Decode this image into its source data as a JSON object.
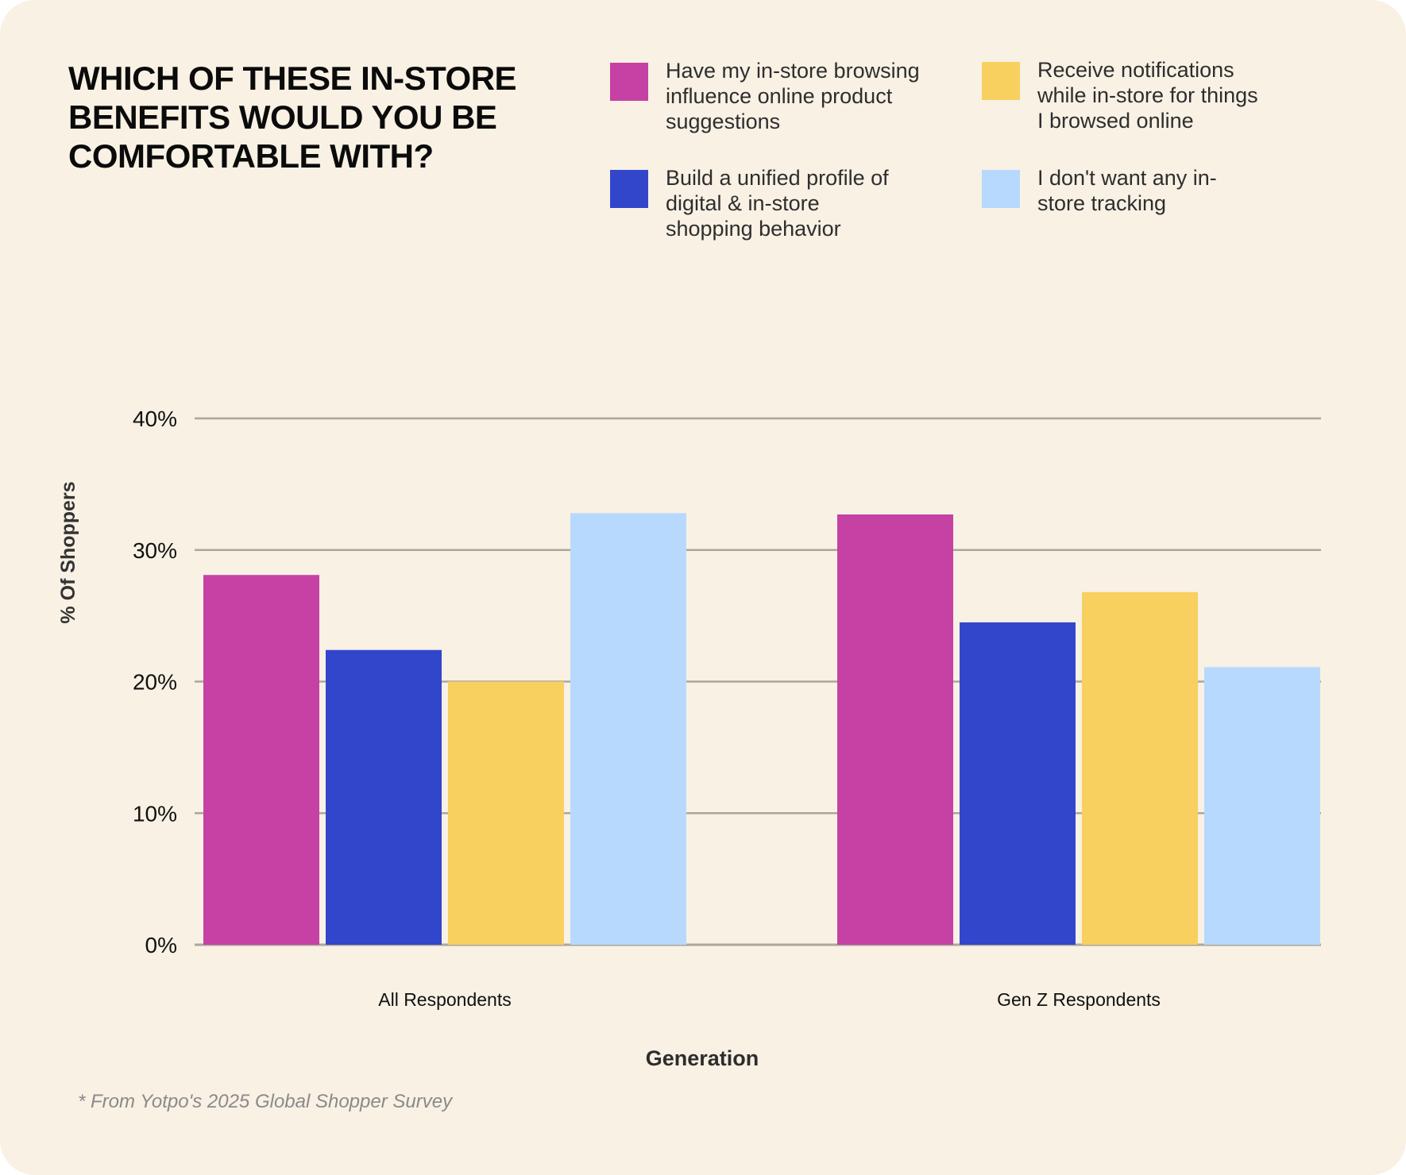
{
  "title_lines": [
    "WHICH OF THESE IN-STORE",
    "BENEFITS WOULD YOU BE",
    "COMFORTABLE WITH?"
  ],
  "legend": [
    {
      "lines": [
        "Have my in-store browsing",
        "influence online product",
        "suggestions"
      ],
      "color": "#c641a4"
    },
    {
      "lines": [
        "Build a unified profile of",
        "digital & in-store",
        "shopping behavior"
      ],
      "color": "#3246cc"
    },
    {
      "lines": [
        "Receive notifications",
        "while in-store for things",
        "I browsed online"
      ],
      "color": "#f8d060"
    },
    {
      "lines": [
        "I don't want any in-",
        "store tracking"
      ],
      "color": "#b8d9fe"
    }
  ],
  "footer": "* From Yotpo's 2025 Global Shopper Survey",
  "chart_data": {
    "type": "bar",
    "title": "WHICH OF THESE IN-STORE BENEFITS WOULD YOU BE COMFORTABLE WITH?",
    "xlabel": "Generation",
    "ylabel": "% Of Shoppers",
    "categories": [
      "All Respondents",
      "Gen Z Respondents"
    ],
    "series": [
      {
        "name": "Have my in-store browsing influence online product suggestions",
        "color": "#c641a4",
        "values": [
          28.1,
          32.7
        ]
      },
      {
        "name": "Build a unified profile of digital & in-store shopping behavior",
        "color": "#3246cc",
        "values": [
          22.4,
          24.5
        ]
      },
      {
        "name": "Receive notifications while in-store for things I browsed online",
        "color": "#f8d060",
        "values": [
          20.0,
          26.8
        ]
      },
      {
        "name": "I don't want any in-store tracking",
        "color": "#b8d9fe",
        "values": [
          32.8,
          21.1
        ]
      }
    ],
    "ylim": [
      0,
      40
    ],
    "yticks": [
      0,
      10,
      20,
      30,
      40
    ],
    "ytick_labels": [
      "0%",
      "10%",
      "20%",
      "30%",
      "40%"
    ],
    "grid": true,
    "gridline_color": "#aba79b",
    "legend_position": "top-right"
  }
}
